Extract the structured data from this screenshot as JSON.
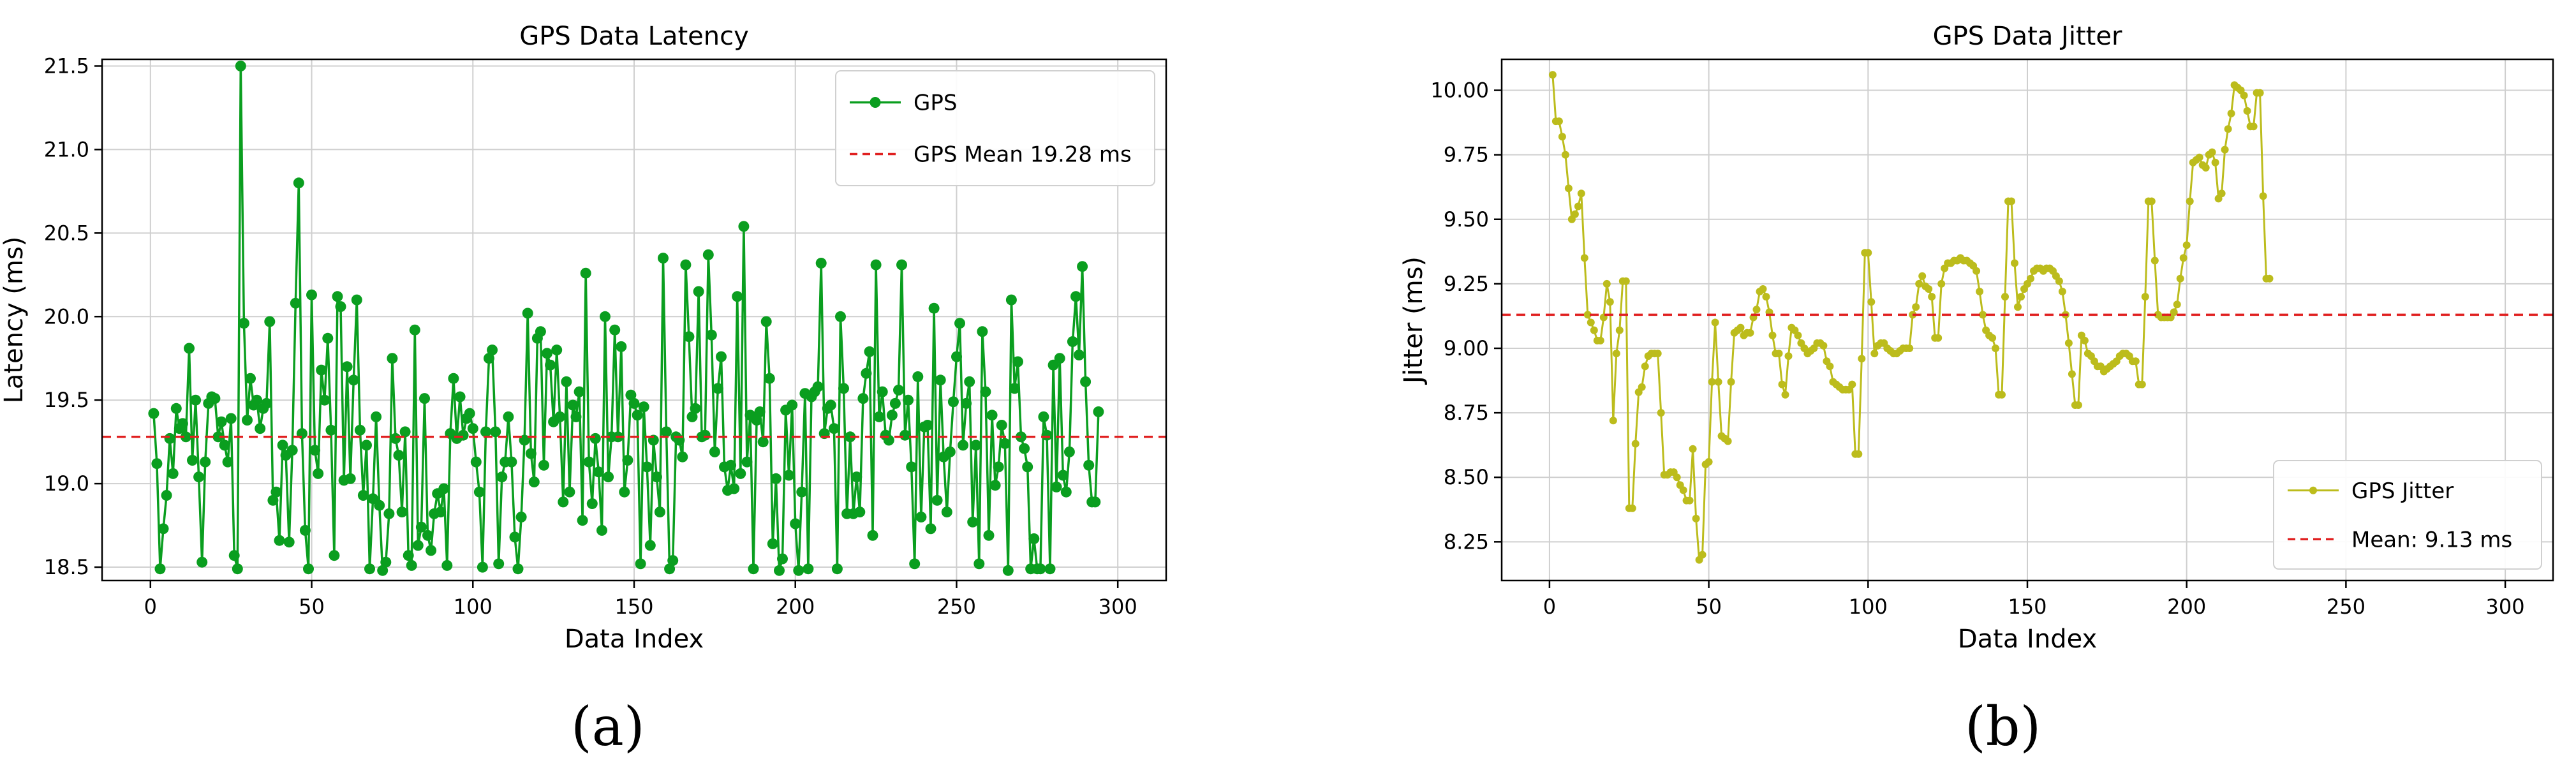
{
  "panel_labels": [
    "(a)",
    "(b)"
  ],
  "colors": {
    "gps": "#0a9e1f",
    "jitter": "#bcbc1c",
    "mean_line": "#e02020",
    "grid": "#cfcfcf"
  },
  "chart_data": [
    {
      "type": "line",
      "title": "GPS Data Latency",
      "xlabel": "Data Index",
      "ylabel": "Latency (ms)",
      "xlim": [
        -15,
        315
      ],
      "ylim": [
        18.42,
        21.54
      ],
      "xticks": [
        0,
        50,
        100,
        150,
        200,
        250,
        300
      ],
      "yticks": [
        18.5,
        19.0,
        19.5,
        20.0,
        20.5,
        21.0,
        21.5
      ],
      "ytick_labels": [
        "18.5",
        "19.0",
        "19.5",
        "20.0",
        "20.5",
        "21.0",
        "21.5"
      ],
      "grid": true,
      "legend_position": "top-right",
      "series": [
        {
          "name": "GPS",
          "marker": "circle",
          "x_start": 1,
          "values": [
            19.42,
            19.12,
            18.49,
            18.73,
            18.93,
            19.27,
            19.06,
            19.45,
            19.33,
            19.36,
            19.28,
            19.81,
            19.14,
            19.5,
            19.04,
            18.53,
            19.13,
            19.48,
            19.52,
            19.51,
            19.28,
            19.37,
            19.23,
            19.13,
            19.39,
            18.57,
            18.49,
            21.5,
            19.96,
            19.38,
            19.63,
            19.47,
            19.5,
            19.33,
            19.45,
            19.48,
            19.97,
            18.9,
            18.95,
            18.66,
            19.23,
            19.17,
            18.65,
            19.2,
            20.08,
            20.8,
            19.3,
            18.72,
            18.49,
            20.13,
            19.2,
            19.06,
            19.68,
            19.5,
            19.87,
            19.32,
            18.57,
            20.12,
            20.06,
            19.02,
            19.7,
            19.03,
            19.62,
            20.1,
            19.32,
            18.93,
            19.23,
            18.49,
            18.91,
            19.4,
            18.87,
            18.48,
            18.53,
            18.82,
            19.75,
            19.27,
            19.17,
            18.83,
            19.31,
            18.57,
            18.51,
            19.92,
            18.63,
            18.74,
            19.51,
            18.69,
            18.6,
            18.82,
            18.94,
            18.83,
            18.97,
            18.51,
            19.3,
            19.63,
            19.27,
            19.52,
            19.29,
            19.39,
            19.42,
            19.33,
            19.13,
            18.95,
            18.5,
            19.31,
            19.75,
            19.8,
            19.31,
            18.52,
            19.04,
            19.13,
            19.4,
            19.13,
            18.68,
            18.49,
            18.8,
            19.26,
            20.02,
            19.18,
            19.01,
            19.87,
            19.91,
            19.11,
            19.78,
            19.71,
            19.37,
            19.8,
            19.4,
            18.89,
            19.61,
            18.95,
            19.47,
            19.4,
            19.55,
            18.78,
            20.26,
            19.13,
            18.88,
            19.27,
            19.07,
            18.72,
            20.0,
            19.04,
            19.28,
            19.92,
            19.28,
            19.82,
            18.95,
            19.14,
            19.53,
            19.48,
            19.41,
            18.52,
            19.46,
            19.1,
            18.63,
            19.26,
            19.04,
            18.83,
            20.35,
            19.31,
            18.49,
            18.54,
            19.28,
            19.26,
            19.16,
            20.31,
            19.88,
            19.4,
            19.45,
            20.15,
            19.28,
            19.29,
            20.37,
            19.89,
            19.19,
            19.57,
            19.76,
            19.1,
            18.96,
            19.11,
            18.97,
            20.12,
            19.06,
            20.54,
            19.13,
            19.41,
            18.49,
            19.38,
            19.43,
            19.25,
            19.97,
            19.63,
            18.64,
            19.03,
            18.48,
            18.55,
            19.44,
            19.05,
            19.47,
            18.76,
            18.48,
            18.95,
            19.54,
            18.49,
            19.52,
            19.55,
            19.58,
            20.32,
            19.3,
            19.45,
            19.47,
            19.33,
            18.49,
            20.0,
            19.57,
            18.82,
            19.28,
            18.82,
            19.04,
            18.83,
            19.51,
            19.66,
            19.79,
            18.69,
            20.31,
            19.4,
            19.55,
            19.29,
            19.26,
            19.41,
            19.48,
            19.56,
            20.31,
            19.29,
            19.5,
            19.1,
            18.52,
            19.64,
            18.8,
            19.34,
            19.35,
            18.73,
            20.05,
            18.9,
            19.62,
            19.16,
            18.83,
            19.19,
            19.49,
            19.76,
            19.96,
            19.23,
            19.48,
            19.61,
            18.77,
            19.23,
            18.52,
            19.91,
            19.55,
            18.69,
            19.41,
            18.99,
            19.1,
            19.35,
            19.24,
            18.48,
            20.1,
            19.57,
            19.73,
            19.28,
            19.21,
            19.1,
            18.49,
            18.67,
            18.49,
            18.49,
            19.4,
            19.29,
            18.49,
            19.71,
            18.98,
            19.75,
            19.05,
            18.95,
            19.19,
            19.85,
            20.12,
            19.77,
            20.3,
            19.61,
            19.11,
            18.89,
            18.89,
            19.43
          ]
        },
        {
          "name": "GPS Mean 19.28 ms",
          "style": "dashed",
          "constant": 19.28
        }
      ]
    },
    {
      "type": "line",
      "title": "GPS Data Jitter",
      "xlabel": "Data Index",
      "ylabel": "Jitter (ms)",
      "xlim": [
        -15,
        315
      ],
      "ylim": [
        8.1,
        10.12
      ],
      "xticks": [
        0,
        50,
        100,
        150,
        200,
        250,
        300
      ],
      "yticks": [
        8.25,
        8.5,
        8.75,
        9.0,
        9.25,
        9.5,
        9.75,
        10.0
      ],
      "ytick_labels": [
        "8.25",
        "8.50",
        "8.75",
        "9.00",
        "9.25",
        "9.50",
        "9.75",
        "10.00"
      ],
      "grid": true,
      "legend_position": "bottom-right",
      "series": [
        {
          "name": "GPS Jitter",
          "marker": "circle",
          "x_start": 1,
          "values": [
            10.06,
            9.88,
            9.88,
            9.82,
            9.75,
            9.62,
            9.5,
            9.52,
            9.55,
            9.6,
            9.35,
            9.13,
            9.1,
            9.07,
            9.03,
            9.03,
            9.12,
            9.25,
            9.18,
            8.72,
            8.98,
            9.07,
            9.26,
            9.26,
            8.38,
            8.38,
            8.63,
            8.83,
            8.85,
            8.93,
            8.97,
            8.98,
            8.98,
            8.98,
            8.75,
            8.51,
            8.51,
            8.52,
            8.52,
            8.5,
            8.47,
            8.45,
            8.41,
            8.41,
            8.61,
            8.34,
            8.18,
            8.2,
            8.55,
            8.56,
            8.87,
            9.1,
            8.87,
            8.66,
            8.65,
            8.64,
            8.87,
            9.06,
            9.07,
            9.08,
            9.05,
            9.06,
            9.06,
            9.12,
            9.15,
            9.22,
            9.23,
            9.2,
            9.14,
            9.05,
            8.98,
            8.98,
            8.86,
            8.82,
            8.97,
            9.08,
            9.07,
            9.05,
            9.02,
            9.0,
            8.98,
            8.99,
            9.0,
            9.02,
            9.02,
            9.01,
            8.95,
            8.93,
            8.87,
            8.86,
            8.85,
            8.84,
            8.84,
            8.84,
            8.86,
            8.59,
            8.59,
            8.96,
            9.37,
            9.37,
            9.18,
            8.98,
            9.01,
            9.02,
            9.02,
            9.0,
            8.99,
            8.98,
            8.98,
            8.99,
            9.0,
            9.0,
            9.0,
            9.13,
            9.16,
            9.25,
            9.28,
            9.24,
            9.23,
            9.2,
            9.04,
            9.04,
            9.25,
            9.31,
            9.33,
            9.33,
            9.34,
            9.34,
            9.35,
            9.34,
            9.34,
            9.33,
            9.32,
            9.3,
            9.22,
            9.13,
            9.07,
            9.05,
            9.04,
            9.0,
            8.82,
            8.82,
            9.2,
            9.57,
            9.57,
            9.33,
            9.16,
            9.2,
            9.23,
            9.25,
            9.27,
            9.3,
            9.31,
            9.31,
            9.3,
            9.31,
            9.31,
            9.3,
            9.28,
            9.26,
            9.22,
            9.13,
            9.02,
            8.9,
            8.78,
            8.78,
            9.05,
            9.03,
            8.98,
            8.97,
            8.95,
            8.93,
            8.93,
            8.91,
            8.92,
            8.93,
            8.94,
            8.95,
            8.97,
            8.98,
            8.98,
            8.97,
            8.95,
            8.95,
            8.86,
            8.86,
            9.2,
            9.57,
            9.57,
            9.34,
            9.13,
            9.12,
            9.12,
            9.12,
            9.12,
            9.14,
            9.17,
            9.27,
            9.35,
            9.4,
            9.57,
            9.72,
            9.73,
            9.74,
            9.71,
            9.7,
            9.75,
            9.76,
            9.72,
            9.58,
            9.6,
            9.77,
            9.85,
            9.91,
            10.02,
            10.01,
            10.0,
            9.98,
            9.92,
            9.86,
            9.86,
            9.99,
            9.99,
            9.59,
            9.27,
            9.27
          ]
        },
        {
          "name": "Mean: 9.13 ms",
          "style": "dashed",
          "constant": 9.13
        }
      ]
    }
  ]
}
